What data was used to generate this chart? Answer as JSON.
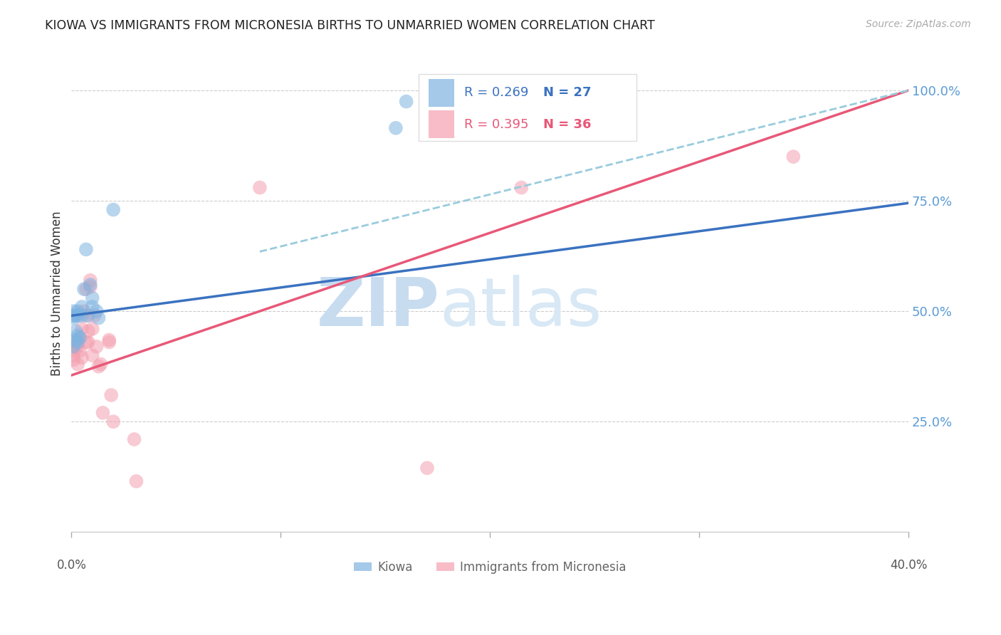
{
  "title": "KIOWA VS IMMIGRANTS FROM MICRONESIA BIRTHS TO UNMARRIED WOMEN CORRELATION CHART",
  "source": "Source: ZipAtlas.com",
  "ylabel": "Births to Unmarried Women",
  "legend_kiowa_R": "0.269",
  "legend_kiowa_N": "27",
  "legend_micro_R": "0.395",
  "legend_micro_N": "36",
  "kiowa_color": "#7EB3E0",
  "micro_color": "#F4A0B0",
  "kiowa_line_color": "#3A72C0",
  "micro_line_color": "#E85878",
  "dashed_line_color": "#99CCDD",
  "watermark_zip": "ZIP",
  "watermark_atlas": "atlas",
  "xlim": [
    0.0,
    0.4
  ],
  "ylim": [
    0.0,
    1.08
  ],
  "ytick_positions": [
    0.0,
    0.25,
    0.5,
    0.75,
    1.0
  ],
  "ytick_labels": [
    "",
    "25.0%",
    "50.0%",
    "75.0%",
    "100.0%"
  ],
  "xtick_positions": [
    0.0,
    0.1,
    0.2,
    0.3,
    0.4
  ],
  "kiowa_x": [
    0.001,
    0.001,
    0.001,
    0.002,
    0.002,
    0.003,
    0.003,
    0.003,
    0.004,
    0.005,
    0.005,
    0.006,
    0.007,
    0.008,
    0.009,
    0.01,
    0.01,
    0.012,
    0.013,
    0.02,
    0.155,
    0.16,
    0.195,
    0.205,
    0.001,
    0.002,
    0.003
  ],
  "kiowa_y": [
    0.485,
    0.49,
    0.5,
    0.49,
    0.435,
    0.49,
    0.445,
    0.5,
    0.44,
    0.51,
    0.49,
    0.55,
    0.64,
    0.49,
    0.56,
    0.53,
    0.51,
    0.5,
    0.485,
    0.73,
    0.915,
    0.975,
    0.98,
    0.975,
    0.42,
    0.455,
    0.43
  ],
  "micro_x": [
    0.001,
    0.001,
    0.001,
    0.002,
    0.002,
    0.003,
    0.003,
    0.004,
    0.004,
    0.005,
    0.005,
    0.006,
    0.007,
    0.007,
    0.007,
    0.008,
    0.008,
    0.009,
    0.009,
    0.01,
    0.01,
    0.011,
    0.012,
    0.013,
    0.014,
    0.015,
    0.018,
    0.018,
    0.019,
    0.02,
    0.03,
    0.031,
    0.09,
    0.17,
    0.215,
    0.345
  ],
  "micro_y": [
    0.39,
    0.4,
    0.41,
    0.42,
    0.43,
    0.38,
    0.42,
    0.41,
    0.44,
    0.395,
    0.46,
    0.5,
    0.43,
    0.49,
    0.55,
    0.43,
    0.455,
    0.555,
    0.57,
    0.4,
    0.46,
    0.49,
    0.42,
    0.375,
    0.38,
    0.27,
    0.43,
    0.435,
    0.31,
    0.25,
    0.21,
    0.115,
    0.78,
    0.145,
    0.78,
    0.85
  ],
  "kiowa_line_x0": 0.0,
  "kiowa_line_x1": 0.4,
  "kiowa_line_y0": 0.49,
  "kiowa_line_y1": 0.745,
  "micro_line_x0": 0.0,
  "micro_line_x1": 0.4,
  "micro_line_y0": 0.355,
  "micro_line_y1": 1.0,
  "dashed_line_x0": 0.09,
  "dashed_line_x1": 0.4,
  "dashed_line_y0": 0.635,
  "dashed_line_y1": 1.0
}
